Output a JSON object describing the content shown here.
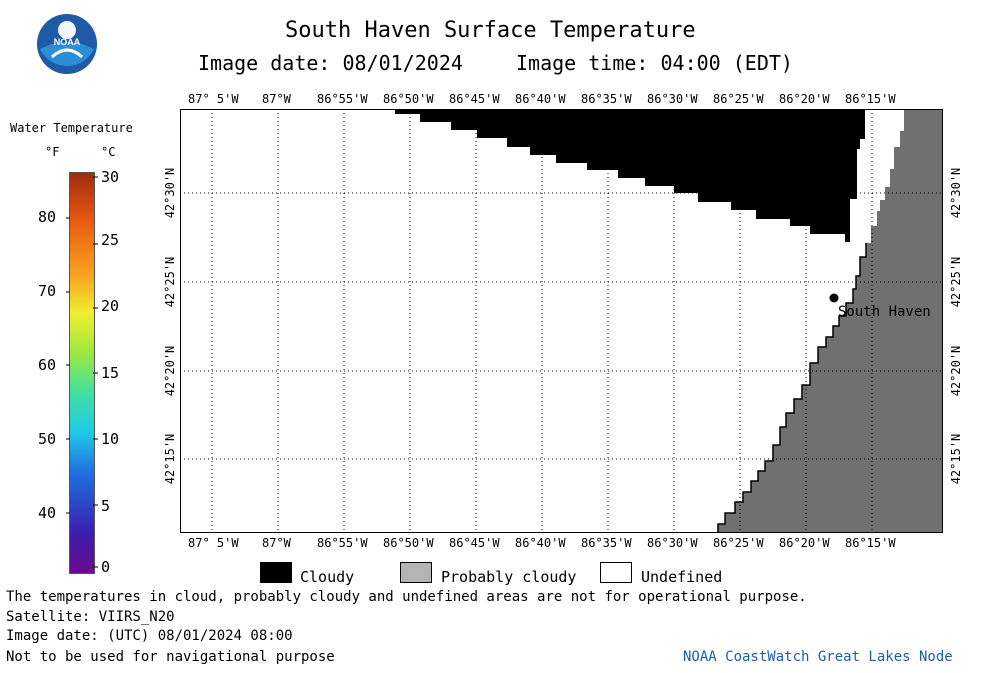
{
  "header": {
    "title": "South Haven Surface Temperature",
    "image_date": "Image date: 08/01/2024",
    "image_time": "Image time: 04:00 (EDT)",
    "logo_text": "NOAA"
  },
  "colorbar": {
    "label": "Water Temperature",
    "unit_f": "°F",
    "unit_c": "°C",
    "f_ticks": [
      "80",
      "70",
      "60",
      "50",
      "40"
    ],
    "c_ticks": [
      "30",
      "25",
      "20",
      "15",
      "10",
      "5",
      "0"
    ]
  },
  "map": {
    "lon_labels": [
      "87° 5'W",
      "87°W",
      "86°55'W",
      "86°50'W",
      "86°45'W",
      "86°40'W",
      "86°35'W",
      "86°30'W",
      "86°25'W",
      "86°20'W",
      "86°15'W"
    ],
    "lat_labels": [
      "42°30'N",
      "42°25'N",
      "42°20'N",
      "42°15'N"
    ],
    "city_label": "South Haven",
    "colors": {
      "cloud": "#000000",
      "land": "#707070",
      "undefined": "#ffffff"
    }
  },
  "legend": {
    "cloudy": "Cloudy",
    "probably_cloudy": "Probably cloudy",
    "undefined": "Undefined"
  },
  "footer": {
    "line1": "The temperatures in cloud, probably cloudy and undefined areas are not for operational purpose.",
    "line2": "Satellite: VIIRS_N20",
    "line3": "Image date: (UTC) 08/01/2024  08:00",
    "line4": "Not to be used for navigational purpose",
    "credit": "NOAA CoastWatch Great Lakes Node"
  }
}
